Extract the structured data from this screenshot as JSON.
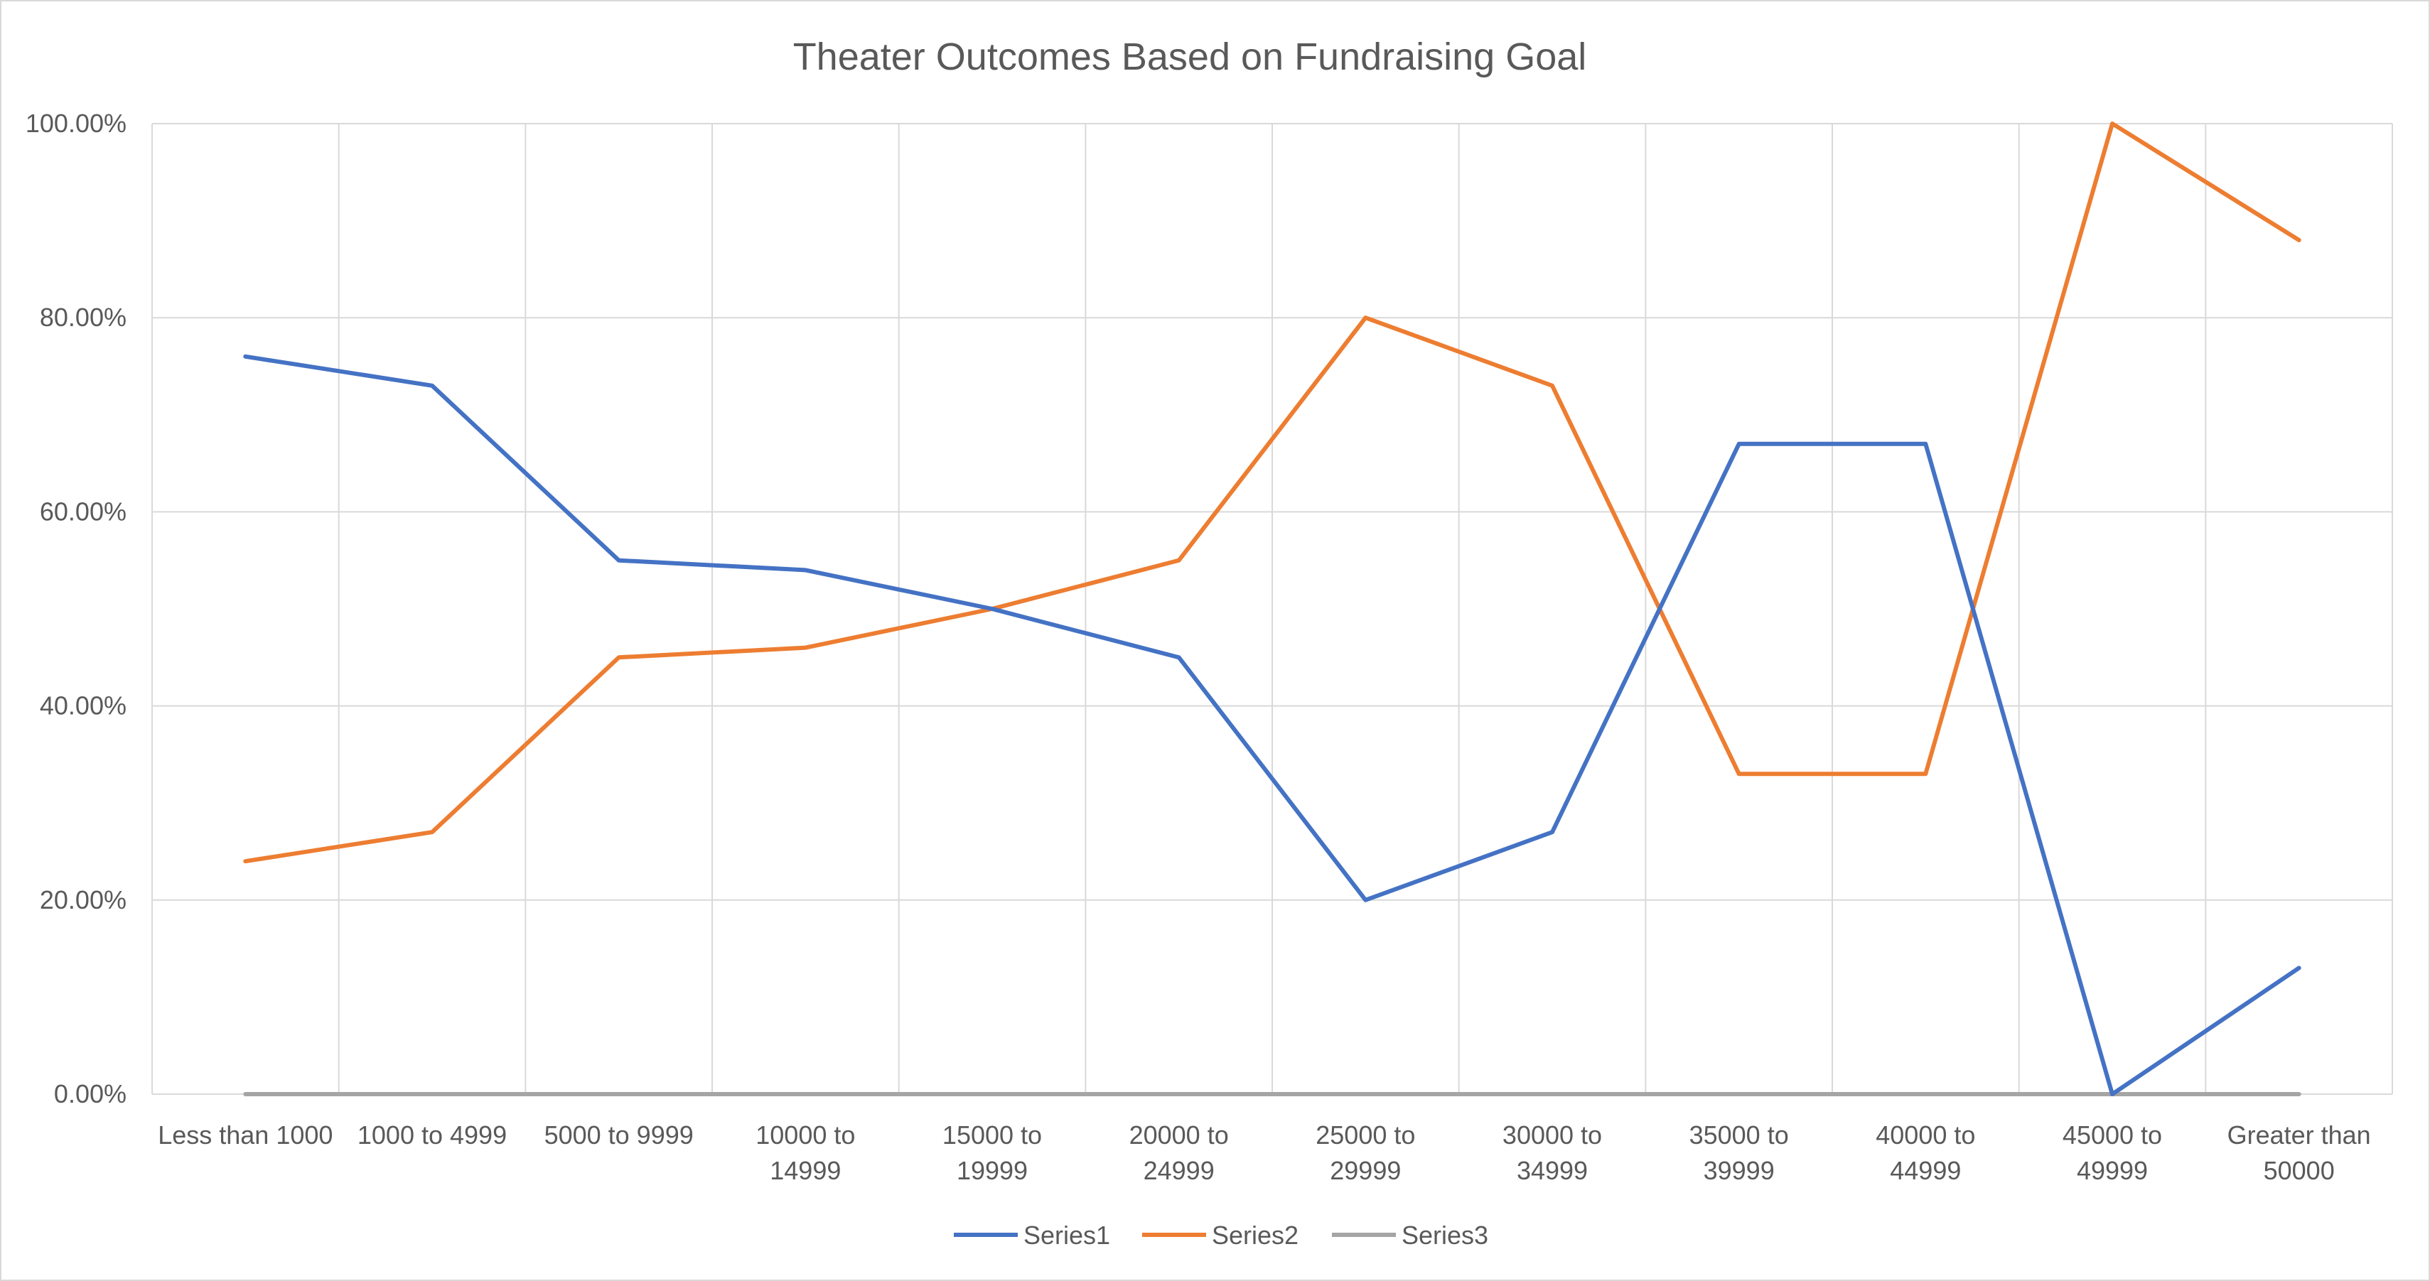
{
  "chart_data": {
    "type": "line",
    "title": "Theater Outcomes Based on Fundraising Goal",
    "xlabel": "",
    "ylabel": "",
    "categories": [
      [
        "Less than 1000"
      ],
      [
        "1000 to 4999"
      ],
      [
        "5000 to 9999"
      ],
      [
        "10000 to",
        "14999"
      ],
      [
        "15000 to",
        "19999"
      ],
      [
        "20000 to",
        "24999"
      ],
      [
        "25000 to",
        "29999"
      ],
      [
        "30000 to",
        "34999"
      ],
      [
        "35000 to",
        "39999"
      ],
      [
        "40000 to",
        "44999"
      ],
      [
        "45000 to",
        "49999"
      ],
      [
        "Greater than",
        "50000"
      ]
    ],
    "ylim": [
      0,
      1
    ],
    "yticks": [
      0,
      0.2,
      0.4,
      0.6,
      0.8,
      1.0
    ],
    "ytick_labels": [
      "0.00%",
      "20.00%",
      "40.00%",
      "60.00%",
      "80.00%",
      "100.00%"
    ],
    "grid": true,
    "legend": "bottom",
    "series": [
      {
        "name": "Series1",
        "color": "#4472c4",
        "values": [
          0.76,
          0.73,
          0.55,
          0.54,
          0.5,
          0.45,
          0.2,
          0.27,
          0.67,
          0.67,
          0.0,
          0.13
        ]
      },
      {
        "name": "Series2",
        "color": "#ed7d31",
        "values": [
          0.24,
          0.27,
          0.45,
          0.46,
          0.5,
          0.55,
          0.8,
          0.73,
          0.33,
          0.33,
          1.0,
          0.88
        ]
      },
      {
        "name": "Series3",
        "color": "#a5a5a5",
        "values": [
          0,
          0,
          0,
          0,
          0,
          0,
          0,
          0,
          0,
          0,
          0,
          0
        ]
      }
    ]
  }
}
